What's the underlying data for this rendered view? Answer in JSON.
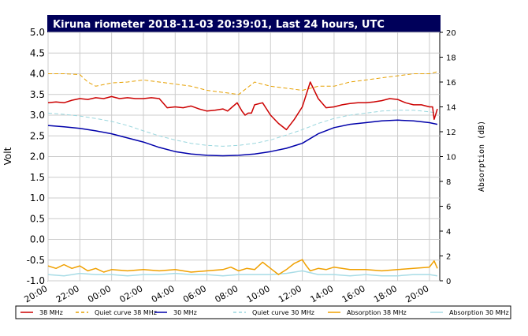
{
  "chart_data": {
    "type": "line",
    "title": "Kiruna riometer 2018-11-03 20:39:01, Last 24 hours, UTC",
    "ylabel": "Volt",
    "y2label": "Absorption (dB)",
    "ylim": [
      -1.0,
      5.0
    ],
    "y2lim": [
      0,
      20
    ],
    "yticks": [
      "-1.0",
      "-0.5",
      "0.0",
      "0.5",
      "1.0",
      "1.5",
      "2.0",
      "2.5",
      "3.0",
      "3.5",
      "4.0",
      "4.5",
      "5.0"
    ],
    "y2ticks": [
      "0",
      "2",
      "4",
      "6",
      "8",
      "10",
      "12",
      "14",
      "16",
      "18",
      "20"
    ],
    "xticks": [
      "20:00",
      "22:00",
      "00:00",
      "02:00",
      "04:00",
      "06:00",
      "08:00",
      "10:00",
      "12:00",
      "14:00",
      "16:00",
      "18:00",
      "20:00"
    ],
    "x_unit": "hours since 2018-11-02 20:00 UTC",
    "xlim": [
      0,
      24.65
    ],
    "grid": true,
    "legend_position": "bottom",
    "series": [
      {
        "name": "38 MHz",
        "color": "#cc0000",
        "style": "solid",
        "axis": "left",
        "x": [
          0,
          0.5,
          1,
          1.5,
          2,
          2.5,
          3,
          3.5,
          4,
          4.5,
          5,
          5.5,
          6,
          6.5,
          7,
          7.5,
          8,
          8.5,
          9,
          9.5,
          10,
          10.5,
          11,
          11.3,
          11.6,
          11.9,
          12.2,
          12.4,
          12.6,
          12.8,
          13,
          13.5,
          14,
          14.5,
          15,
          15.5,
          16,
          16.5,
          17,
          17.5,
          18,
          18.5,
          19,
          19.5,
          20,
          20.5,
          21,
          21.5,
          22,
          22.5,
          23,
          23.5,
          24,
          24.2,
          24.3,
          24.5
        ],
        "values": [
          3.3,
          3.32,
          3.3,
          3.36,
          3.4,
          3.38,
          3.42,
          3.4,
          3.45,
          3.4,
          3.42,
          3.4,
          3.4,
          3.42,
          3.4,
          3.18,
          3.2,
          3.18,
          3.22,
          3.15,
          3.1,
          3.12,
          3.15,
          3.1,
          3.2,
          3.3,
          3.1,
          3.0,
          3.05,
          3.05,
          3.25,
          3.3,
          3.0,
          2.8,
          2.65,
          2.9,
          3.2,
          3.8,
          3.4,
          3.18,
          3.2,
          3.25,
          3.28,
          3.3,
          3.3,
          3.32,
          3.35,
          3.4,
          3.38,
          3.3,
          3.25,
          3.25,
          3.2,
          3.2,
          2.9,
          3.15
        ]
      },
      {
        "name": "Quiet curve 38 MHz",
        "color": "#e6a000",
        "style": "dashed",
        "axis": "left",
        "x": [
          0,
          1,
          2,
          2.5,
          3,
          4,
          5,
          6,
          7,
          8,
          9,
          10,
          11,
          12,
          13,
          14,
          15,
          16,
          17,
          18,
          19,
          20,
          21,
          22,
          23,
          24,
          24.5
        ],
        "values": [
          4.0,
          4.0,
          3.98,
          3.8,
          3.7,
          3.78,
          3.8,
          3.85,
          3.8,
          3.75,
          3.7,
          3.6,
          3.55,
          3.5,
          3.8,
          3.7,
          3.65,
          3.6,
          3.7,
          3.7,
          3.8,
          3.85,
          3.9,
          3.95,
          4.0,
          4.0,
          4.05
        ]
      },
      {
        "name": "30 MHz",
        "color": "#0000aa",
        "style": "solid",
        "axis": "left",
        "x": [
          0,
          1,
          2,
          3,
          4,
          5,
          6,
          7,
          8,
          9,
          10,
          11,
          12,
          13,
          14,
          15,
          16,
          17,
          18,
          19,
          20,
          21,
          22,
          23,
          24,
          24.5
        ],
        "values": [
          2.75,
          2.72,
          2.68,
          2.62,
          2.55,
          2.45,
          2.35,
          2.22,
          2.12,
          2.06,
          2.03,
          2.02,
          2.03,
          2.06,
          2.12,
          2.2,
          2.32,
          2.55,
          2.7,
          2.78,
          2.82,
          2.86,
          2.88,
          2.86,
          2.82,
          2.78
        ]
      },
      {
        "name": "Quiet curve 30 MHz",
        "color": "#99d6dd",
        "style": "dashed",
        "axis": "left",
        "x": [
          0,
          1,
          2,
          3,
          4,
          5,
          6,
          7,
          8,
          9,
          10,
          11,
          12,
          13,
          14,
          15,
          16,
          17,
          18,
          19,
          20,
          21,
          22,
          23,
          24,
          24.5
        ],
        "values": [
          3.05,
          3.02,
          2.98,
          2.92,
          2.85,
          2.75,
          2.62,
          2.5,
          2.4,
          2.32,
          2.27,
          2.25,
          2.27,
          2.32,
          2.4,
          2.52,
          2.65,
          2.8,
          2.92,
          3.0,
          3.05,
          3.1,
          3.12,
          3.12,
          3.08,
          3.05
        ]
      },
      {
        "name": "Absorption 38 MHz",
        "color": "#f0a000",
        "style": "solid",
        "axis": "right",
        "x": [
          0,
          0.5,
          1,
          1.5,
          2,
          2.5,
          3,
          3.5,
          4,
          5,
          6,
          7,
          8,
          9,
          10,
          11,
          11.5,
          12,
          12.5,
          13,
          13.5,
          14,
          14.5,
          15,
          15.5,
          16,
          16.2,
          16.5,
          17,
          17.5,
          18,
          19,
          20,
          21,
          22,
          23,
          24,
          24.3,
          24.5
        ],
        "values": [
          1.2,
          1.0,
          1.3,
          1.0,
          1.2,
          0.8,
          1.0,
          0.7,
          0.9,
          0.8,
          0.9,
          0.8,
          0.9,
          0.7,
          0.8,
          0.9,
          1.1,
          0.8,
          1.0,
          0.9,
          1.5,
          1.0,
          0.5,
          0.9,
          1.4,
          1.7,
          1.3,
          0.8,
          1.0,
          0.9,
          1.1,
          0.9,
          0.9,
          0.8,
          0.9,
          1.0,
          1.1,
          1.6,
          1.0
        ]
      },
      {
        "name": "Absorption 30 MHz",
        "color": "#a8dce6",
        "style": "solid",
        "axis": "right",
        "x": [
          0,
          1,
          2,
          3,
          4,
          5,
          6,
          7,
          8,
          9,
          10,
          11,
          12,
          13,
          14,
          15,
          16,
          17,
          18,
          19,
          20,
          21,
          22,
          23,
          24,
          24.5
        ],
        "values": [
          0.5,
          0.4,
          0.6,
          0.5,
          0.5,
          0.4,
          0.5,
          0.5,
          0.6,
          0.5,
          0.5,
          0.4,
          0.5,
          0.5,
          0.5,
          0.6,
          0.8,
          0.5,
          0.5,
          0.4,
          0.5,
          0.4,
          0.4,
          0.5,
          0.5,
          0.4
        ]
      }
    ]
  }
}
